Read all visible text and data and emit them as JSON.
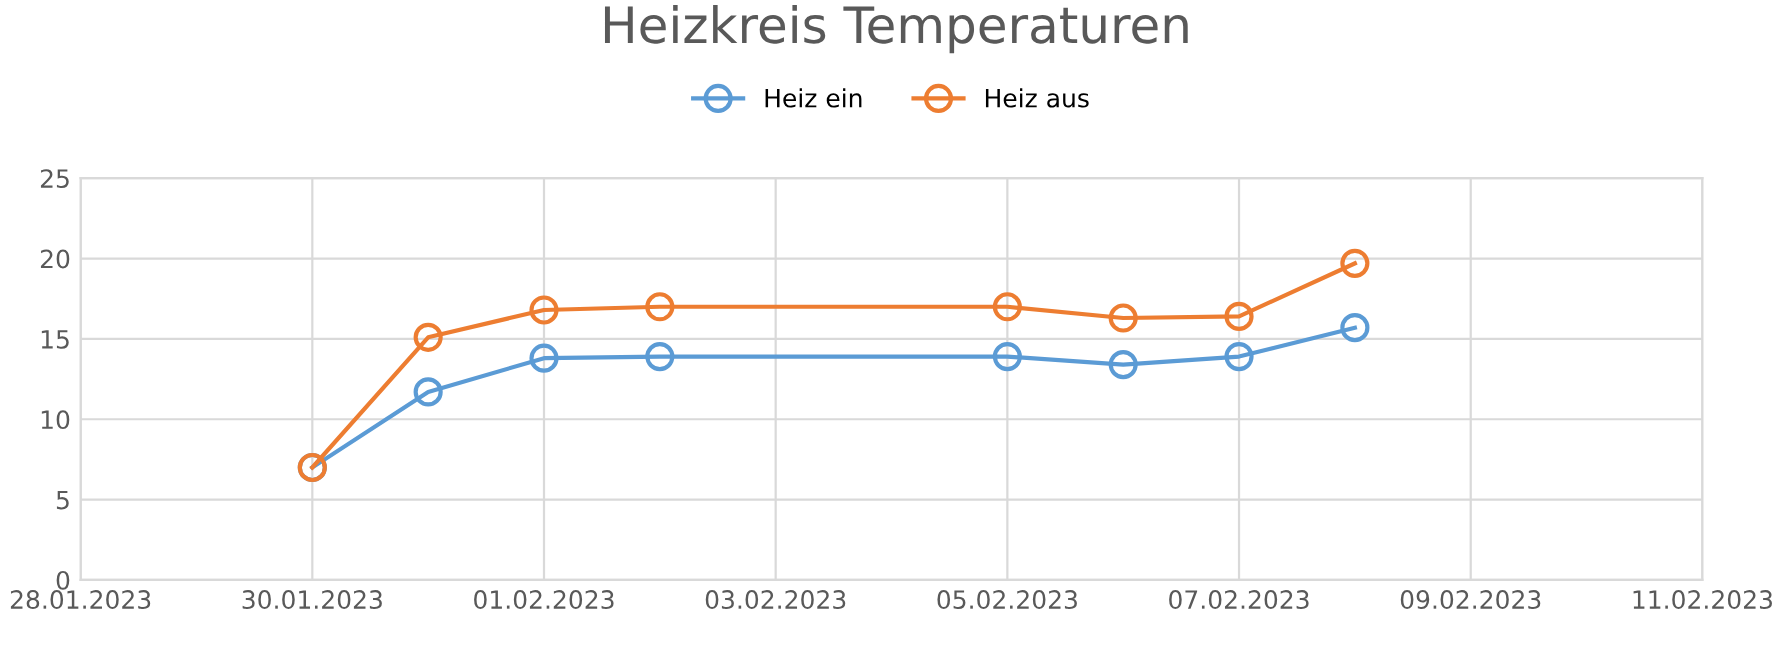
{
  "chart_data": {
    "type": "line",
    "title": "Heizkreis Temperaturen",
    "x": [
      "2023-01-30",
      "2023-01-31",
      "2023-02-01",
      "2023-02-02",
      "2023-02-05",
      "2023-02-06",
      "2023-02-07",
      "2023-02-08"
    ],
    "series": [
      {
        "name": "Heiz ein",
        "color": "#5b9bd5",
        "values": [
          7,
          11.7,
          13.8,
          13.9,
          13.9,
          13.4,
          13.9,
          15.7
        ]
      },
      {
        "name": "Heiz aus",
        "color": "#ed7d31",
        "values": [
          7,
          15.1,
          16.8,
          17.0,
          17.0,
          16.3,
          16.4,
          19.7
        ]
      }
    ],
    "xlim": [
      "2023-01-28",
      "2023-02-11"
    ],
    "xticks": [
      {
        "value": "2023-01-28",
        "label": "28.01.2023"
      },
      {
        "value": "2023-01-30",
        "label": "30.01.2023"
      },
      {
        "value": "2023-02-01",
        "label": "01.02.2023"
      },
      {
        "value": "2023-02-03",
        "label": "03.02.2023"
      },
      {
        "value": "2023-02-05",
        "label": "05.02.2023"
      },
      {
        "value": "2023-02-07",
        "label": "07.02.2023"
      },
      {
        "value": "2023-02-09",
        "label": "09.02.2023"
      },
      {
        "value": "2023-02-11",
        "label": "11.02.2023"
      }
    ],
    "ylim": [
      0,
      25
    ],
    "yticks": [
      0,
      5,
      10,
      15,
      20,
      25
    ],
    "grid": true,
    "legend": "top",
    "marker": "circle",
    "line_style": "solid"
  }
}
